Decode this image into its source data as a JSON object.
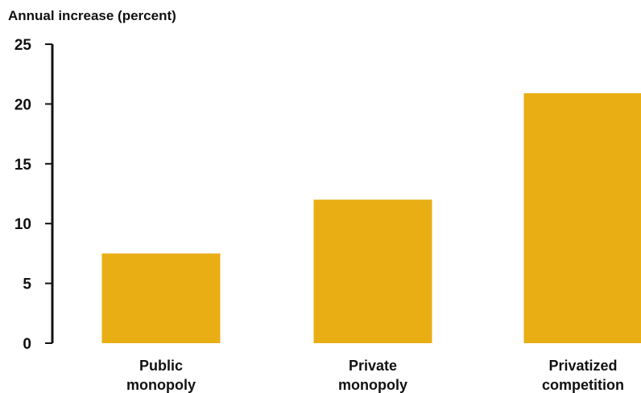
{
  "chart_data": {
    "type": "bar",
    "ylabel": "Annual increase (percent)",
    "xlabel": "",
    "categories": [
      [
        "Public",
        "monopoly"
      ],
      [
        "Private",
        "monopoly"
      ],
      [
        "Privatized",
        "competition"
      ]
    ],
    "values": [
      7.5,
      12,
      20.9
    ],
    "ylim": [
      0,
      25
    ],
    "yticks": [
      0,
      5,
      10,
      15,
      20,
      25
    ],
    "grid": false,
    "legend": "none",
    "bar_color": "#E8AE14",
    "axis_color": "#111111"
  }
}
